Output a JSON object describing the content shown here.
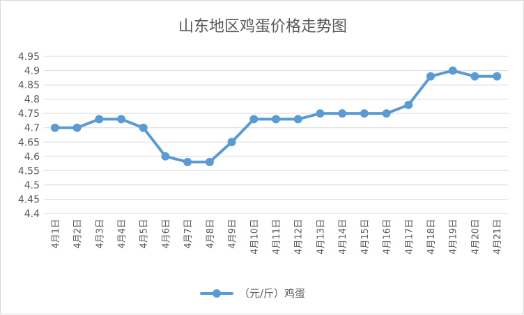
{
  "chart_data": {
    "type": "line",
    "title": "山东地区鸡蛋价格走势图",
    "xlabel": "",
    "ylabel": "",
    "ylim": [
      4.4,
      4.95
    ],
    "yticks": [
      "4.4",
      "4.45",
      "4.5",
      "4.55",
      "4.6",
      "4.65",
      "4.7",
      "4.75",
      "4.8",
      "4.85",
      "4.9",
      "4.95"
    ],
    "grid": true,
    "legend_position": "bottom",
    "categories": [
      "4月1日",
      "4月2日",
      "4月3日",
      "4月4日",
      "4月5日",
      "4月6日",
      "4月7日",
      "4月8日",
      "4月9日",
      "4月10日",
      "4月11日",
      "4月12日",
      "4月13日",
      "4月14日",
      "4月15日",
      "4月16日",
      "4月17日",
      "4月18日",
      "4月19日",
      "4月20日",
      "4月21日"
    ],
    "series": [
      {
        "name": "（元/斤）鸡蛋",
        "color": "#5b9bd5",
        "values": [
          4.7,
          4.7,
          4.73,
          4.73,
          4.7,
          4.6,
          4.58,
          4.58,
          4.65,
          4.73,
          4.73,
          4.73,
          4.75,
          4.75,
          4.75,
          4.75,
          4.78,
          4.88,
          4.9,
          4.88,
          4.88
        ]
      }
    ]
  }
}
